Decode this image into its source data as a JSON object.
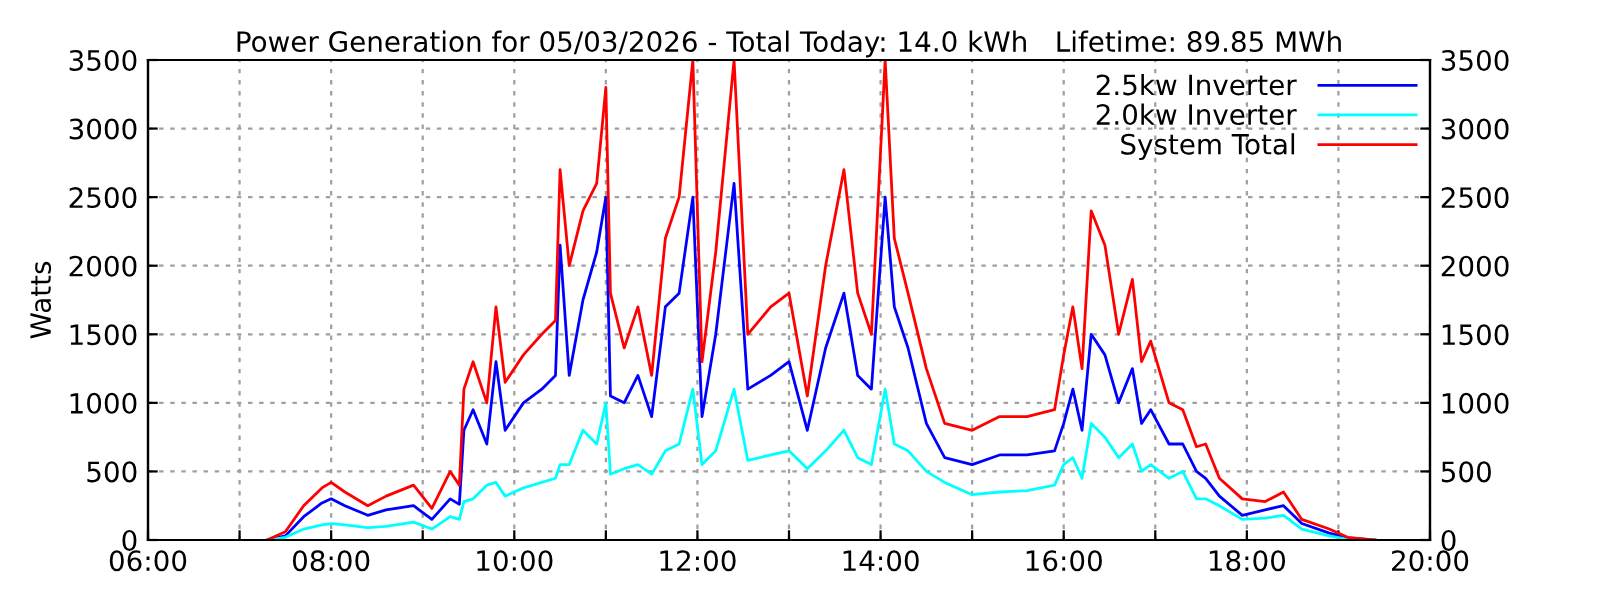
{
  "chart_data": {
    "type": "line",
    "title": "Power Generation for 05/03/2026 - Total Today: 14.0 kWh   Lifetime: 89.85 MWh",
    "ylabel": "Watts",
    "x": [
      7.3,
      7.5,
      7.7,
      7.9,
      8.0,
      8.15,
      8.4,
      8.6,
      8.9,
      9.1,
      9.3,
      9.4,
      9.45,
      9.55,
      9.7,
      9.8,
      9.9,
      10.1,
      10.3,
      10.45,
      10.5,
      10.6,
      10.75,
      10.9,
      11.0,
      11.05,
      11.2,
      11.35,
      11.5,
      11.65,
      11.8,
      11.95,
      12.05,
      12.2,
      12.4,
      12.55,
      12.8,
      13.0,
      13.2,
      13.4,
      13.6,
      13.75,
      13.9,
      14.05,
      14.15,
      14.3,
      14.5,
      14.7,
      15.0,
      15.3,
      15.6,
      15.9,
      16.0,
      16.1,
      16.2,
      16.3,
      16.45,
      16.6,
      16.75,
      16.85,
      16.95,
      17.15,
      17.3,
      17.45,
      17.55,
      17.7,
      17.95,
      18.2,
      18.4,
      18.6,
      18.9,
      19.1,
      19.4
    ],
    "series": [
      {
        "name": "2.5kw Inverter",
        "color": "#0000ff",
        "values": [
          0,
          30,
          170,
          270,
          300,
          250,
          180,
          220,
          250,
          150,
          300,
          260,
          800,
          950,
          700,
          1300,
          800,
          1000,
          1100,
          1200,
          2150,
          1200,
          1750,
          2100,
          2500,
          1050,
          1000,
          1200,
          900,
          1700,
          1800,
          2500,
          900,
          1500,
          2600,
          1100,
          1200,
          1300,
          800,
          1400,
          1800,
          1200,
          1100,
          2500,
          1700,
          1400,
          850,
          600,
          550,
          620,
          620,
          650,
          850,
          1100,
          800,
          1500,
          1350,
          1000,
          1250,
          850,
          950,
          700,
          700,
          500,
          450,
          320,
          180,
          220,
          250,
          120,
          50,
          15,
          0
        ]
      },
      {
        "name": "2.0kw Inverter",
        "color": "#00ffff",
        "values": [
          0,
          20,
          80,
          110,
          120,
          110,
          90,
          100,
          130,
          80,
          170,
          150,
          280,
          300,
          400,
          420,
          320,
          380,
          420,
          450,
          550,
          550,
          800,
          700,
          1000,
          480,
          520,
          550,
          480,
          650,
          700,
          1100,
          550,
          650,
          1100,
          580,
          620,
          650,
          520,
          650,
          800,
          600,
          550,
          1100,
          700,
          650,
          500,
          420,
          330,
          350,
          360,
          400,
          550,
          600,
          450,
          850,
          750,
          600,
          700,
          500,
          550,
          450,
          500,
          300,
          300,
          250,
          150,
          160,
          180,
          80,
          30,
          5,
          0
        ]
      },
      {
        "name": "System Total",
        "color": "#ff0000",
        "values": [
          0,
          60,
          250,
          380,
          420,
          350,
          250,
          320,
          400,
          230,
          500,
          400,
          1100,
          1300,
          1000,
          1700,
          1150,
          1350,
          1500,
          1600,
          2700,
          2000,
          2400,
          2600,
          3300,
          1800,
          1400,
          1700,
          1200,
          2200,
          2500,
          3500,
          1300,
          2100,
          3500,
          1500,
          1700,
          1800,
          1050,
          2000,
          2700,
          1800,
          1500,
          3500,
          2200,
          1800,
          1250,
          850,
          800,
          900,
          900,
          950,
          1350,
          1700,
          1250,
          2400,
          2150,
          1500,
          1900,
          1300,
          1450,
          1000,
          950,
          680,
          700,
          450,
          300,
          280,
          350,
          150,
          80,
          20,
          0
        ]
      }
    ],
    "xlim": [
      6,
      20
    ],
    "xticks": [
      {
        "value": 6,
        "label": "06:00"
      },
      {
        "value": 7,
        "label": null
      },
      {
        "value": 8,
        "label": "08:00"
      },
      {
        "value": 9,
        "label": null
      },
      {
        "value": 10,
        "label": "10:00"
      },
      {
        "value": 11,
        "label": null
      },
      {
        "value": 12,
        "label": "12:00"
      },
      {
        "value": 13,
        "label": null
      },
      {
        "value": 14,
        "label": "14:00"
      },
      {
        "value": 15,
        "label": null
      },
      {
        "value": 16,
        "label": "16:00"
      },
      {
        "value": 17,
        "label": null
      },
      {
        "value": 18,
        "label": "18:00"
      },
      {
        "value": 19,
        "label": null
      },
      {
        "value": 20,
        "label": "20:00"
      }
    ],
    "ylim": [
      0,
      3500
    ],
    "yticks": [
      0,
      500,
      1000,
      1500,
      2000,
      2500,
      3000,
      3500
    ],
    "y2lim": [
      0,
      3500
    ],
    "y2ticks": [
      0,
      500,
      1000,
      1500,
      2000,
      2500,
      3000,
      3500
    ],
    "grid": true,
    "legend": "top right",
    "line_style": "solid",
    "marker": "none"
  }
}
